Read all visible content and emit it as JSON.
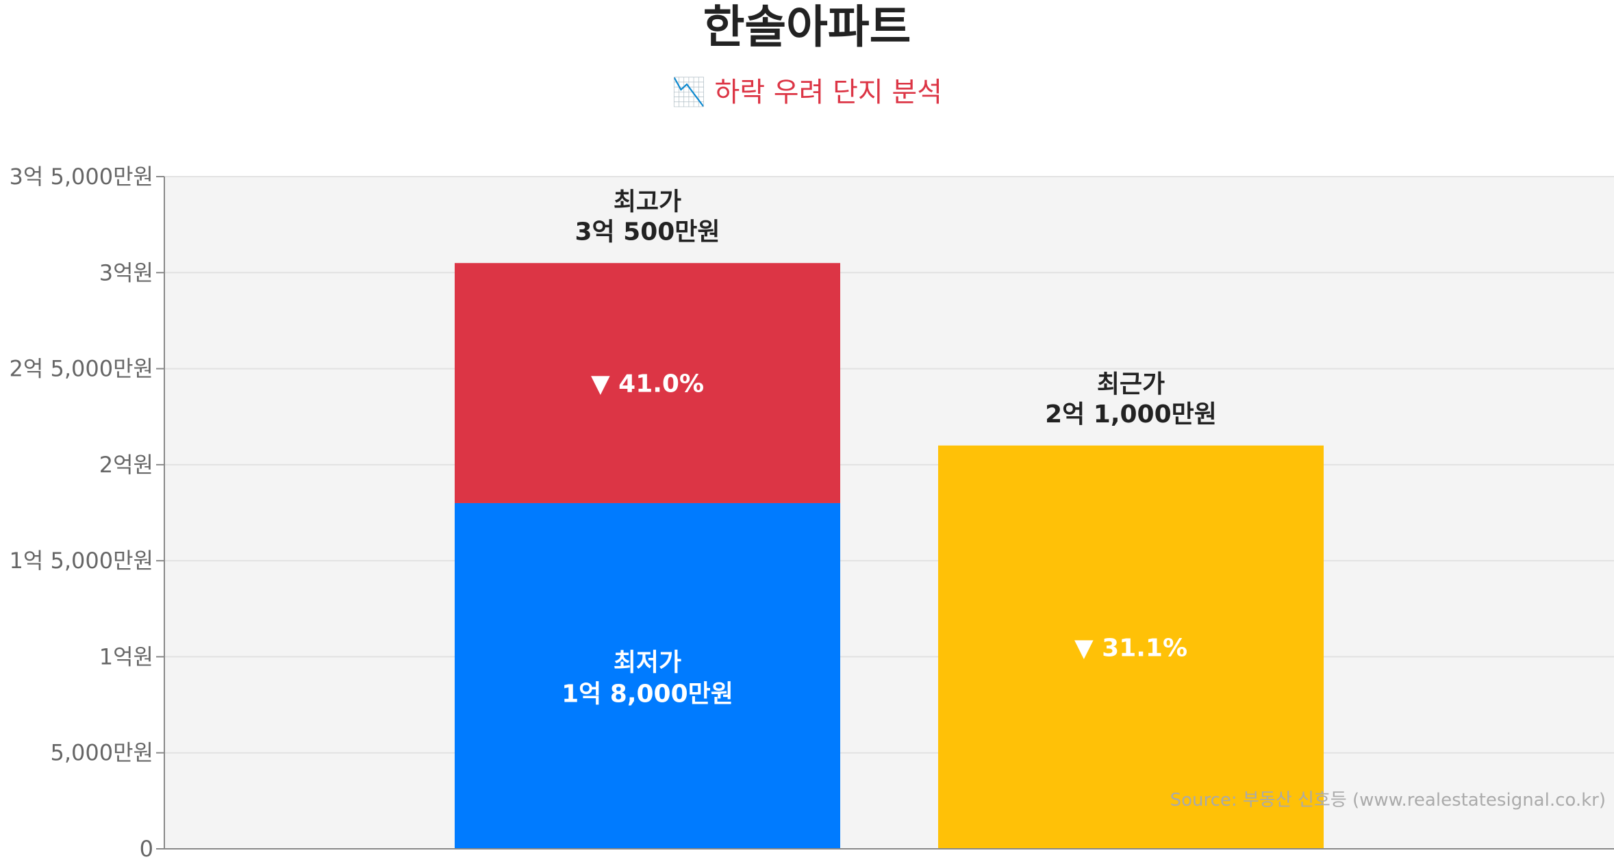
{
  "title": "한솔아파트",
  "subtitle": "📉 하락 우려 단지 분석",
  "source": "Source: 부동산 신호등 (www.realestatesignal.co.kr)",
  "colors": {
    "plot_bg": "#f4f4f4",
    "grid": "#e2e2e2",
    "axis": "#888888",
    "max_bar": "#dc3545",
    "min_bar": "#007bff",
    "recent_bar": "#ffc107",
    "title": "#222222",
    "subtitle": "#dc3545"
  },
  "chart_data": {
    "type": "bar",
    "ylim": [
      0,
      35000
    ],
    "y_ticks": [
      {
        "value": 0,
        "label": "0"
      },
      {
        "value": 5000,
        "label": "5,000만원"
      },
      {
        "value": 10000,
        "label": "1억원"
      },
      {
        "value": 15000,
        "label": "1억 5,000만원"
      },
      {
        "value": 20000,
        "label": "2억원"
      },
      {
        "value": 25000,
        "label": "2억 5,000만원"
      },
      {
        "value": 30000,
        "label": "3억원"
      },
      {
        "value": 35000,
        "label": "3억 5,000만원"
      }
    ],
    "bars": [
      {
        "name": "최고가/최저가",
        "max_value": 30500,
        "min_value": 18000,
        "max_label_title": "최고가",
        "max_label_value": "3억 500만원",
        "min_label_title": "최저가",
        "min_label_value": "1억 8,000만원",
        "change_label": "▼ 41.0%"
      },
      {
        "name": "최근가",
        "value": 21000,
        "label_title": "최근가",
        "label_value": "2억 1,000만원",
        "change_label": "▼ 31.1%"
      }
    ],
    "grid": true
  }
}
